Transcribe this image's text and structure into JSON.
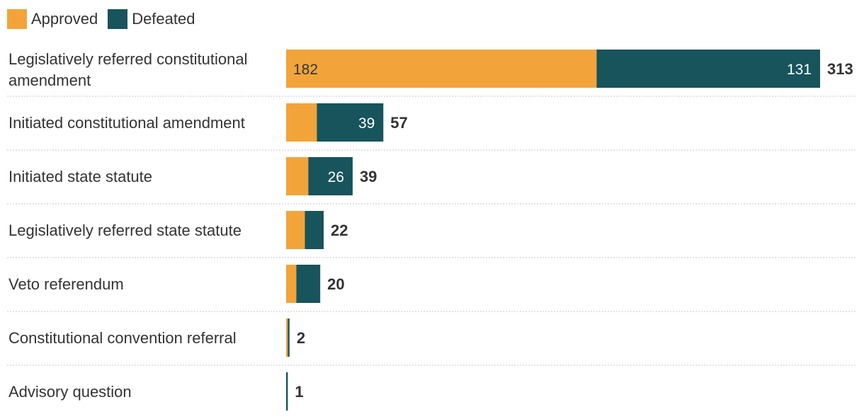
{
  "chart_data": {
    "type": "bar",
    "orientation": "horizontal",
    "stacked": true,
    "title": "",
    "xlabel": "",
    "ylabel": "",
    "legend": "top-left",
    "colors": {
      "approved": "#f2a43a",
      "defeated": "#17545c"
    },
    "series": [
      {
        "name": "Approved",
        "values": [
          182,
          18,
          13,
          11,
          6,
          1,
          0
        ]
      },
      {
        "name": "Defeated",
        "values": [
          131,
          39,
          26,
          11,
          14,
          1,
          1
        ]
      }
    ],
    "categories": [
      {
        "label": "Legislatively referred constitutional amendment",
        "lines": [
          "Legislatively referred constitutional",
          "amendment"
        ],
        "total": 313,
        "approved_label": "182",
        "defeated_label": "131"
      },
      {
        "label": "Initiated constitutional amendment",
        "lines": [
          "Initiated constitutional amendment"
        ],
        "total": 57,
        "approved_label": "",
        "defeated_label": "39"
      },
      {
        "label": "Initiated state statute",
        "lines": [
          "Initiated state statute"
        ],
        "total": 39,
        "approved_label": "",
        "defeated_label": "26"
      },
      {
        "label": "Legislatively referred state statute",
        "lines": [
          "Legislatively referred state statute"
        ],
        "total": 22,
        "approved_label": "",
        "defeated_label": ""
      },
      {
        "label": "Veto referendum",
        "lines": [
          "Veto referendum"
        ],
        "total": 20,
        "approved_label": "",
        "defeated_label": ""
      },
      {
        "label": "Constitutional convention referral",
        "lines": [
          "Constitutional convention referral"
        ],
        "total": 2,
        "approved_label": "",
        "defeated_label": ""
      },
      {
        "label": "Advisory question",
        "lines": [
          "Advisory question"
        ],
        "total": 1,
        "approved_label": "",
        "defeated_label": ""
      }
    ],
    "xlim": [
      0,
      313
    ]
  }
}
